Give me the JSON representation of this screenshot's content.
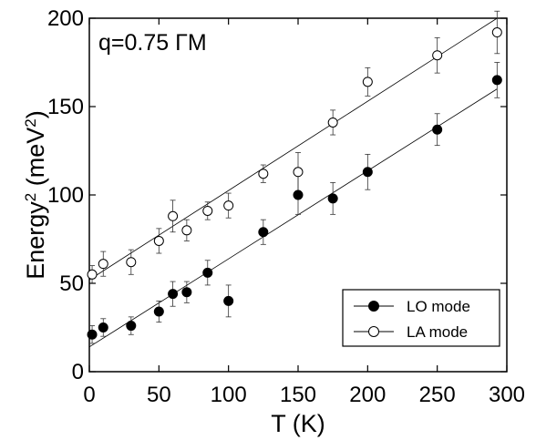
{
  "chart_data": {
    "type": "scatter",
    "title": "",
    "xlabel": "T (K)",
    "ylabel": {
      "base": "Energy",
      "sup1": "2",
      "unit_open": " (meV",
      "sup2": "2",
      "unit_close": ")"
    },
    "xlim": [
      0,
      300
    ],
    "ylim": [
      0,
      200
    ],
    "xticks": [
      "0",
      "50",
      "100",
      "150",
      "200",
      "250",
      "300"
    ],
    "yticks": [
      "0",
      "50",
      "100",
      "150",
      "200"
    ],
    "annotation": "q=0.75 ΓM",
    "grid": false,
    "legend_position": "bottom-right",
    "series": [
      {
        "name": "LO mode",
        "marker": "filled-circle",
        "color": "#000000",
        "x": [
          2,
          10,
          30,
          50,
          60,
          70,
          85,
          100,
          125,
          150,
          175,
          200,
          250,
          293
        ],
        "y": [
          21,
          25,
          26,
          34,
          44,
          45,
          56,
          40,
          79,
          100,
          98,
          113,
          137,
          165
        ],
        "err": [
          5,
          5,
          5,
          6,
          7,
          6,
          7,
          9,
          7,
          11,
          9,
          10,
          9,
          10
        ],
        "fit": {
          "x": [
            0,
            293
          ],
          "y": [
            14,
            160
          ]
        }
      },
      {
        "name": "LA mode",
        "marker": "open-circle",
        "color": "#000000",
        "x": [
          2,
          10,
          30,
          50,
          60,
          70,
          85,
          100,
          125,
          150,
          175,
          200,
          250,
          293
        ],
        "y": [
          55,
          61,
          62,
          74,
          88,
          80,
          91,
          94,
          112,
          113,
          141,
          164,
          179,
          192
        ],
        "err": [
          5,
          7,
          7,
          7,
          9,
          6,
          5,
          7,
          5,
          11,
          7,
          8,
          10,
          12
        ],
        "fit": {
          "x": [
            0,
            293
          ],
          "y": [
            52,
            200
          ]
        }
      }
    ]
  }
}
